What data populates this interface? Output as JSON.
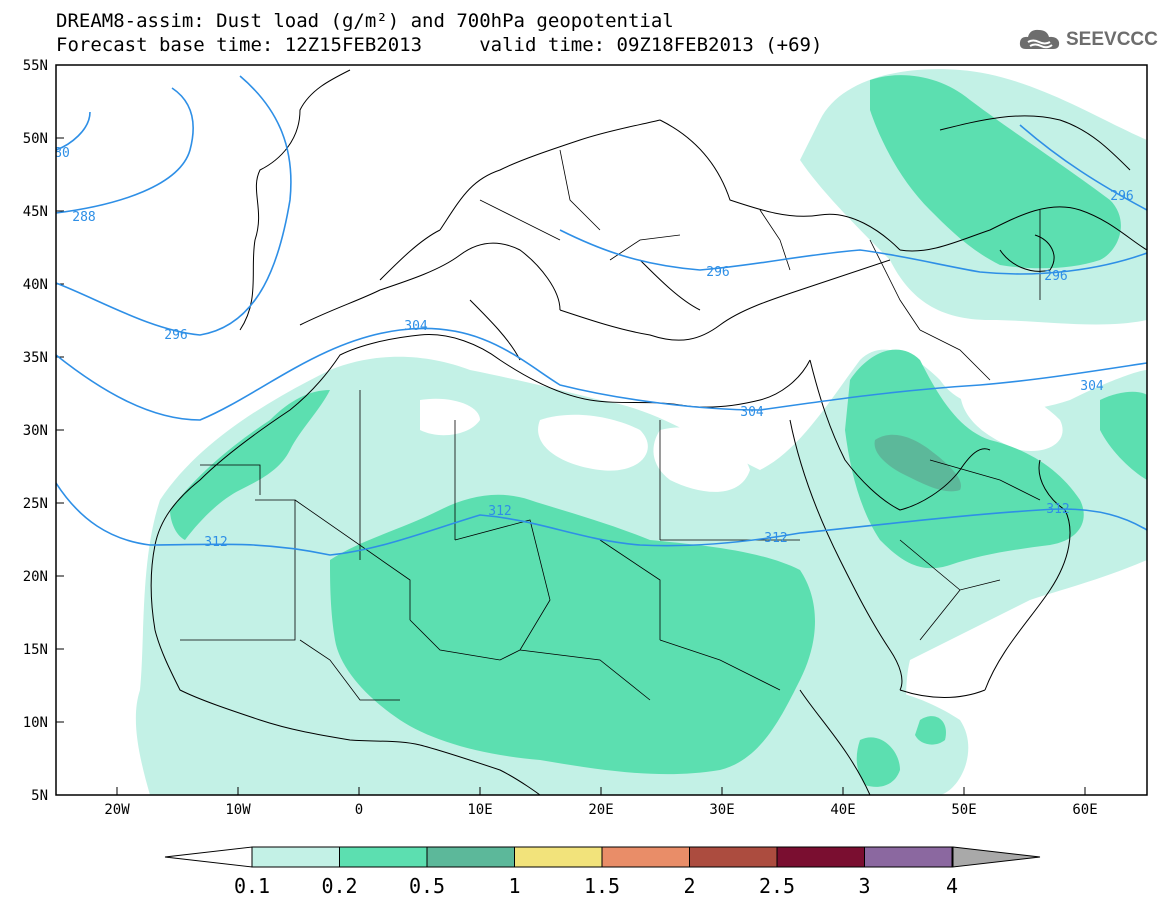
{
  "header": {
    "title_line1": "DREAM8-assim: Dust load (g/m²) and 700hPa geopotential",
    "title_line2": "Forecast base time: 12Z15FEB2013     valid time: 09Z18FEB2013 (+69)",
    "logo_text": "SEEVCCC"
  },
  "map": {
    "lat_labels": [
      "55N",
      "50N",
      "45N",
      "40N",
      "35N",
      "30N",
      "25N",
      "20N",
      "15N",
      "10N",
      "5N"
    ],
    "lon_labels": [
      "20W",
      "10W",
      "0",
      "10E",
      "20E",
      "30E",
      "40E",
      "50E",
      "60E"
    ],
    "contour_labels": [
      "80",
      "288",
      "296",
      "304",
      "312",
      "312",
      "312",
      "304",
      "296",
      "296",
      "296",
      "312",
      "304"
    ],
    "colors": {
      "band_0_1": "#c3f1e6",
      "band_0_2": "#5cdfb0",
      "band_0_5": "#5cb89a",
      "contour": "#2e8fe6"
    }
  },
  "colorbar": {
    "ticks": [
      "0.1",
      "0.2",
      "0.5",
      "1",
      "1.5",
      "2",
      "2.5",
      "3",
      "4"
    ],
    "colors": [
      "#c3f1e6",
      "#5cdfb0",
      "#5cb89a",
      "#f2e37b",
      "#e98d68",
      "#ac4c3f",
      "#7a0e30",
      "#8b68a0",
      "#a9a9a9"
    ]
  }
}
